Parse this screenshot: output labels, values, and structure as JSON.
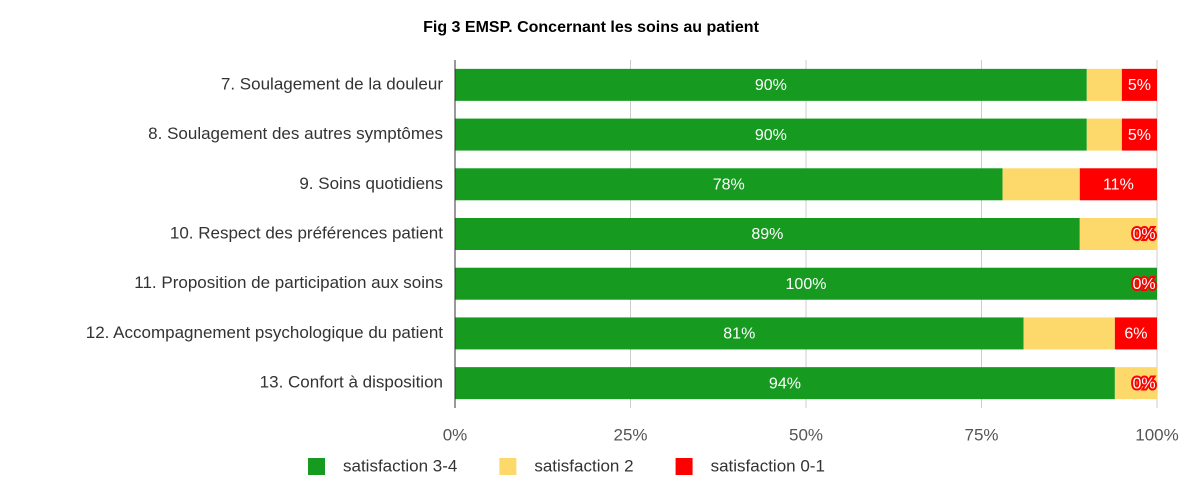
{
  "chart_data": {
    "type": "stacked_hbar",
    "title": "Fig 3 EMSP. Concernant les soins au patient",
    "categories": [
      "7. Soulagement de la douleur",
      "8. Soulagement des autres symptômes",
      "9. Soins quotidiens",
      "10. Respect des préférences patient",
      "11. Proposition de participation aux soins",
      "12. Accompagnement psychologique du patient",
      "13. Confort à disposition"
    ],
    "series": [
      {
        "name": "satisfaction 3-4",
        "color": "#169b20",
        "values": [
          90,
          90,
          78,
          89,
          100,
          81,
          94
        ],
        "value_labels": [
          "90%",
          "90%",
          "78%",
          "89%",
          "100%",
          "81%",
          "94%"
        ]
      },
      {
        "name": "satisfaction 2",
        "color": "#fdd86b",
        "values": [
          5,
          5,
          11,
          11,
          0,
          13,
          6
        ]
      },
      {
        "name": "satisfaction 0-1",
        "color": "#fe0000",
        "values": [
          5,
          5,
          11,
          0,
          0,
          6,
          0
        ],
        "value_labels": [
          "5%",
          "5%",
          "11%",
          "0%",
          "0%",
          "6%",
          "0%"
        ]
      }
    ],
    "xlim": [
      0,
      100
    ],
    "xticks": [
      {
        "value": 0,
        "label": "0%"
      },
      {
        "value": 25,
        "label": "25%"
      },
      {
        "value": 50,
        "label": "50%"
      },
      {
        "value": 75,
        "label": "75%"
      },
      {
        "value": 100,
        "label": "100%"
      }
    ],
    "grid": true,
    "legend": "bottom"
  }
}
